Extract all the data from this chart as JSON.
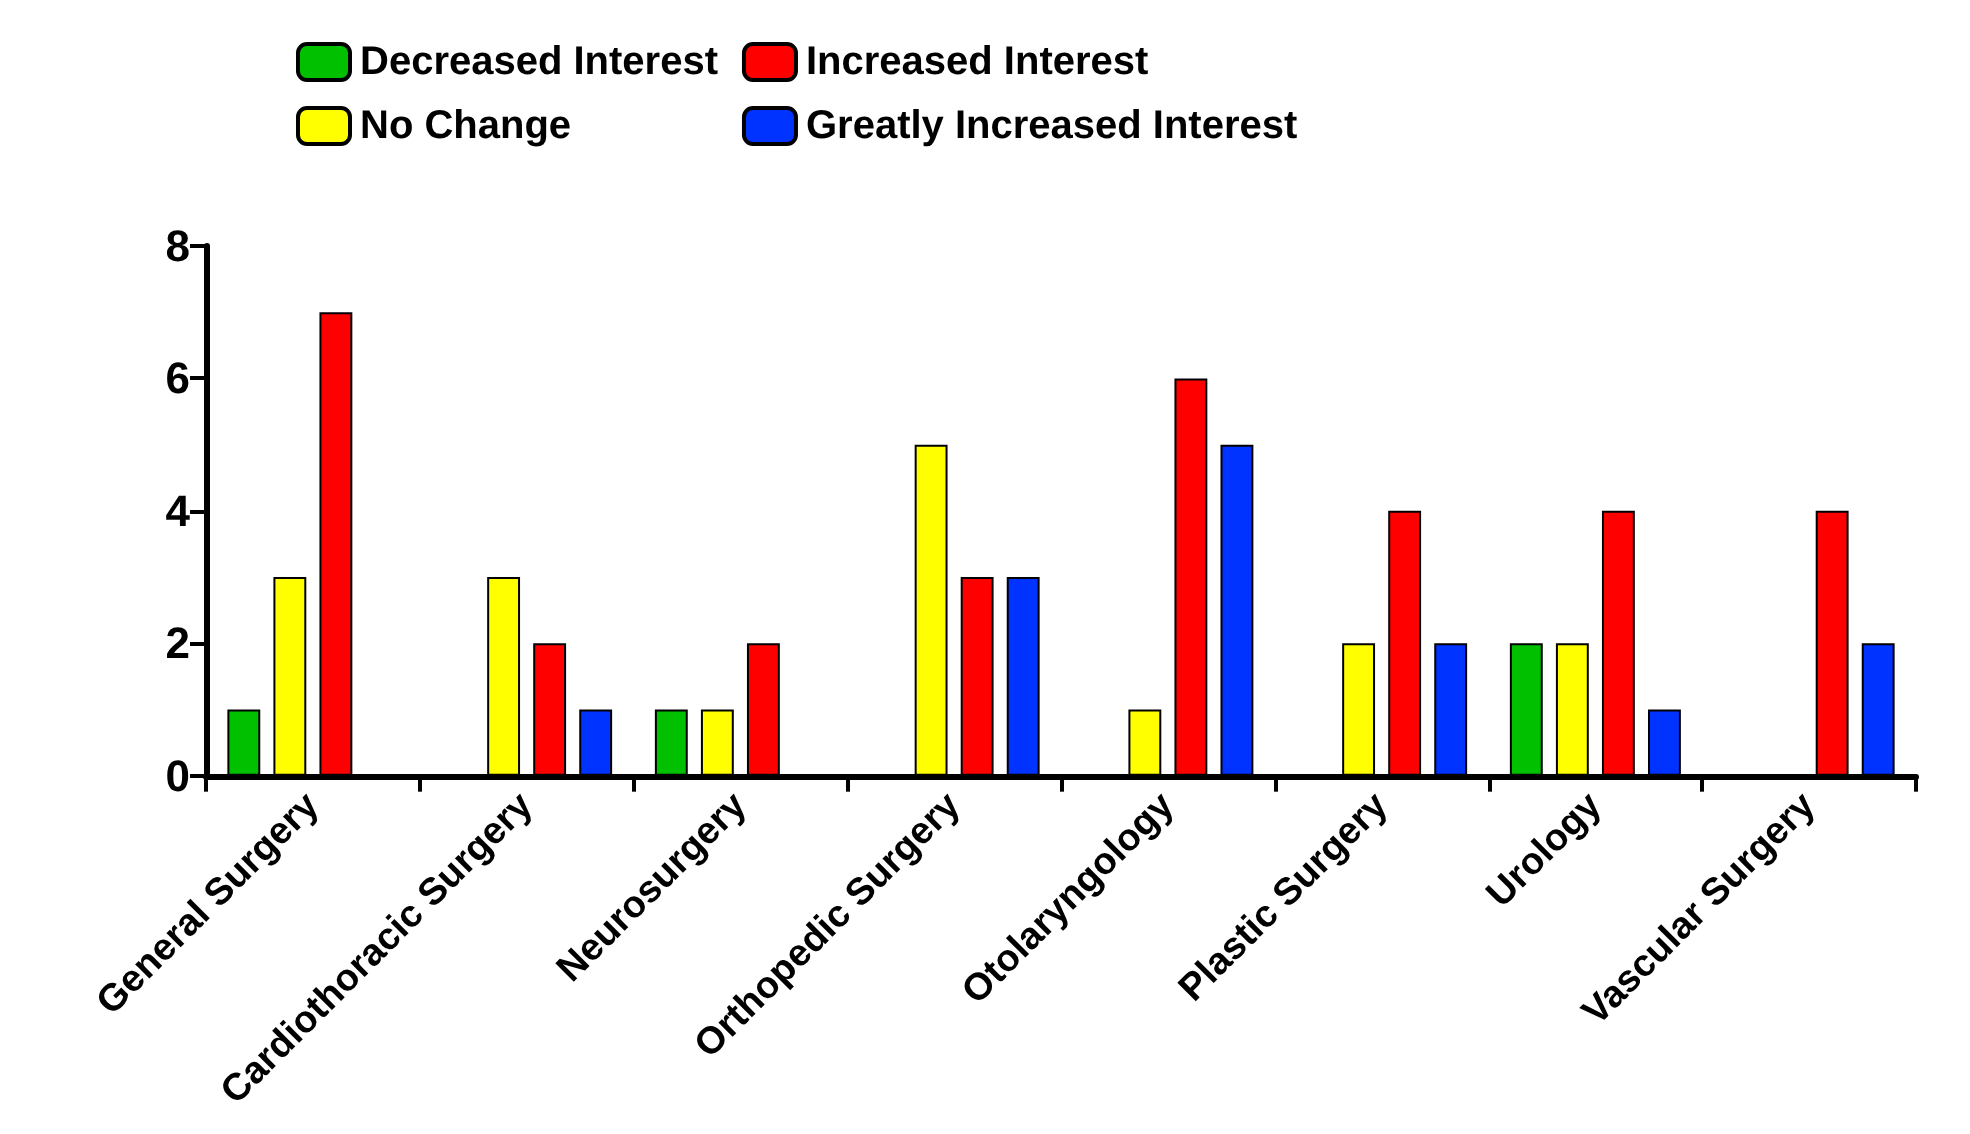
{
  "chart_data": {
    "type": "bar",
    "categories": [
      "General Surgery",
      "Cardiothoracic Surgery",
      "Neurosurgery",
      "Orthopedic Surgery",
      "Otolaryngology",
      "Plastic Surgery",
      "Urology",
      "Vascular Surgery"
    ],
    "series": [
      {
        "name": "Decreased Interest",
        "color": "#00c000",
        "values": [
          1,
          null,
          1,
          null,
          null,
          null,
          2,
          null
        ]
      },
      {
        "name": "No Change",
        "color": "#ffff00",
        "values": [
          3,
          3,
          1,
          5,
          1,
          2,
          2,
          null
        ]
      },
      {
        "name": "Increased Interest",
        "color": "#ff0000",
        "values": [
          7,
          2,
          2,
          3,
          6,
          4,
          4,
          4
        ]
      },
      {
        "name": "Greatly Increased Interest",
        "color": "#0033ff",
        "values": [
          null,
          1,
          null,
          3,
          5,
          2,
          1,
          2
        ]
      }
    ],
    "ylim": [
      0,
      8
    ],
    "yticks": [
      0,
      2,
      4,
      6,
      8
    ],
    "grid": false,
    "legend": "top left"
  }
}
